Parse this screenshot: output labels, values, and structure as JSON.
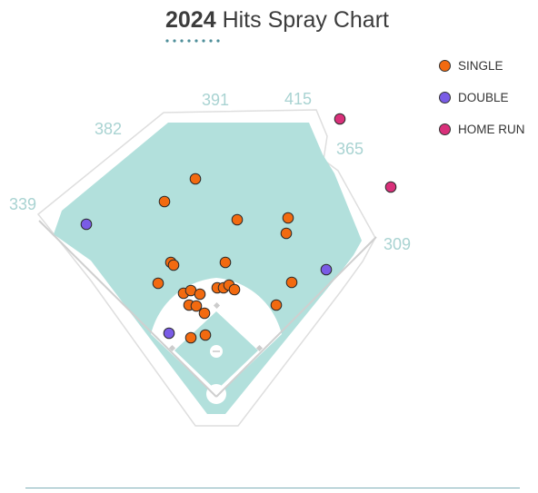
{
  "title": {
    "year": "2024",
    "text": "Hits Spray Chart"
  },
  "colors": {
    "single": "#f26a10",
    "double": "#7a5ce6",
    "home_run": "#d9307a",
    "field": "#b2e0dc",
    "warning_track": "#ffffff",
    "outline": "#d6d6d6"
  },
  "legend": [
    {
      "key": "single",
      "label": "SINGLE",
      "color": "#f26a10"
    },
    {
      "key": "double",
      "label": "DOUBLE",
      "color": "#7a5ce6"
    },
    {
      "key": "home_run",
      "label": "HOME RUN",
      "color": "#d9307a"
    }
  ],
  "fence_distances": [
    {
      "id": "lf-line",
      "label": "339"
    },
    {
      "id": "lf",
      "label": "382"
    },
    {
      "id": "lcf",
      "label": "391"
    },
    {
      "id": "rcf",
      "label": "415"
    },
    {
      "id": "rf",
      "label": "365"
    },
    {
      "id": "rf-line",
      "label": "309"
    }
  ],
  "chart_data": {
    "type": "scatter",
    "title": "2024 Hits Spray Chart",
    "series": [
      {
        "name": "SINGLE",
        "points": [
          [
            215,
            197
          ],
          [
            181,
            222
          ],
          [
            261,
            242
          ],
          [
            317,
            240
          ],
          [
            315,
            257
          ],
          [
            188,
            289
          ],
          [
            191,
            292
          ],
          [
            248,
            289
          ],
          [
            174,
            312
          ],
          [
            321,
            311
          ],
          [
            202,
            323
          ],
          [
            210,
            320
          ],
          [
            220,
            324
          ],
          [
            239,
            317
          ],
          [
            246,
            317
          ],
          [
            252,
            314
          ],
          [
            258,
            319
          ],
          [
            208,
            336
          ],
          [
            216,
            337
          ],
          [
            304,
            336
          ],
          [
            225,
            345
          ],
          [
            210,
            372
          ],
          [
            226,
            369
          ]
        ]
      },
      {
        "name": "DOUBLE",
        "points": [
          [
            95,
            247
          ],
          [
            359,
            297
          ],
          [
            186,
            367
          ]
        ]
      },
      {
        "name": "HOME RUN",
        "points": [
          [
            374,
            131
          ],
          [
            430,
            206
          ]
        ]
      }
    ]
  }
}
